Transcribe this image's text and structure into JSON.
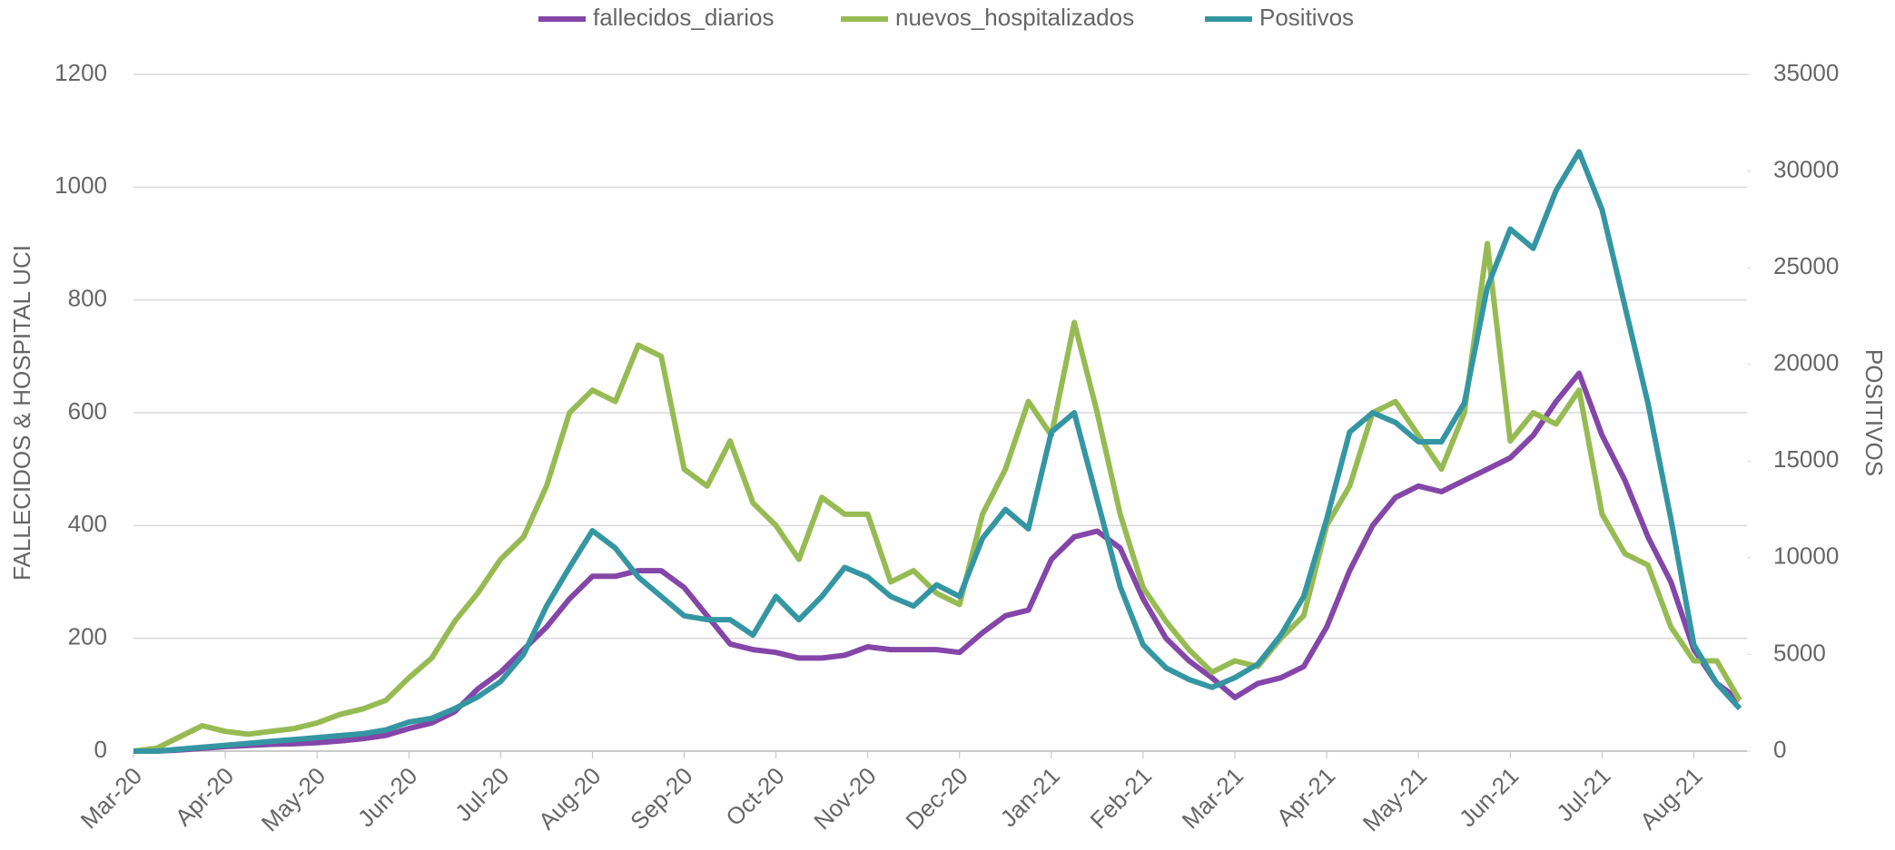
{
  "chart_data": {
    "type": "line",
    "y_label": "FALLECIDOS  & HOSPITAL UCI",
    "y2_label": "POSITIVOS",
    "categories": [
      "Mar-20",
      null,
      null,
      null,
      "Apr-20",
      null,
      null,
      null,
      "May-20",
      null,
      null,
      null,
      "Jun-20",
      null,
      null,
      null,
      "Jul-20",
      null,
      null,
      null,
      "Aug-20",
      null,
      null,
      null,
      "Sep-20",
      null,
      null,
      null,
      "Oct-20",
      null,
      null,
      null,
      "Nov-20",
      null,
      null,
      null,
      "Dec-20",
      null,
      null,
      null,
      "Jan-21",
      null,
      null,
      null,
      "Feb-21",
      null,
      null,
      null,
      "Mar-21",
      null,
      null,
      null,
      "Apr-21",
      null,
      null,
      null,
      "May-21",
      null,
      null,
      null,
      "Jun-21",
      null,
      null,
      null,
      "Jul-21",
      null,
      null,
      null,
      "Aug-21",
      null,
      null
    ],
    "series": [
      {
        "name": "fallecidos_diarios",
        "color": "#8446a8",
        "values": [
          0,
          0,
          2,
          5,
          8,
          10,
          12,
          13,
          15,
          18,
          22,
          28,
          40,
          50,
          70,
          110,
          140,
          180,
          220,
          270,
          310,
          310,
          320,
          320,
          290,
          240,
          190,
          180,
          175,
          165,
          165,
          170,
          185,
          180,
          180,
          180,
          175,
          210,
          240,
          250,
          340,
          380,
          390,
          360,
          270,
          200,
          160,
          130,
          95,
          120,
          130,
          150,
          220,
          320,
          400,
          450,
          470,
          460,
          480,
          500,
          520,
          560,
          620,
          670,
          560,
          480,
          380,
          300,
          180,
          120,
          90
        ]
      },
      {
        "name": "nuevos_hospitalizados",
        "color": "#97bb53",
        "values": [
          0,
          5,
          25,
          45,
          35,
          30,
          35,
          40,
          50,
          65,
          75,
          90,
          130,
          165,
          230,
          280,
          340,
          380,
          470,
          600,
          640,
          620,
          720,
          700,
          500,
          470,
          550,
          440,
          400,
          340,
          450,
          420,
          420,
          300,
          320,
          280,
          260,
          420,
          500,
          620,
          560,
          760,
          600,
          420,
          290,
          230,
          180,
          140,
          160,
          150,
          200,
          240,
          400,
          470,
          600,
          620,
          560,
          500,
          600,
          900,
          550,
          600,
          580,
          640,
          420,
          350,
          330,
          220,
          160,
          160,
          90
        ]
      },
      {
        "name": "Positivos",
        "color": "#3496a2",
        "axis": "y2",
        "values": [
          0,
          0,
          100,
          200,
          300,
          400,
          500,
          600,
          700,
          800,
          900,
          1100,
          1500,
          1700,
          2200,
          2800,
          3600,
          5000,
          7500,
          9500,
          11400,
          10500,
          9000,
          8000,
          7000,
          6800,
          6800,
          6000,
          8000,
          6800,
          8000,
          9500,
          9000,
          8000,
          7500,
          8600,
          8000,
          11000,
          12500,
          11500,
          16500,
          17500,
          13000,
          8500,
          5500,
          4300,
          3700,
          3300,
          3800,
          4500,
          6000,
          8000,
          12000,
          16500,
          17500,
          17000,
          16000,
          16000,
          18000,
          24000,
          27000,
          26000,
          29000,
          31000,
          28000,
          23000,
          18000,
          12000,
          5500,
          3500,
          2200
        ]
      }
    ],
    "ylim": [
      0,
      1200
    ],
    "yticks": [
      0,
      200,
      400,
      600,
      800,
      1000,
      1200
    ],
    "y2lim": [
      0,
      35000
    ],
    "y2ticks": [
      0,
      5000,
      10000,
      15000,
      20000,
      25000,
      30000,
      35000
    ],
    "grid": true
  }
}
